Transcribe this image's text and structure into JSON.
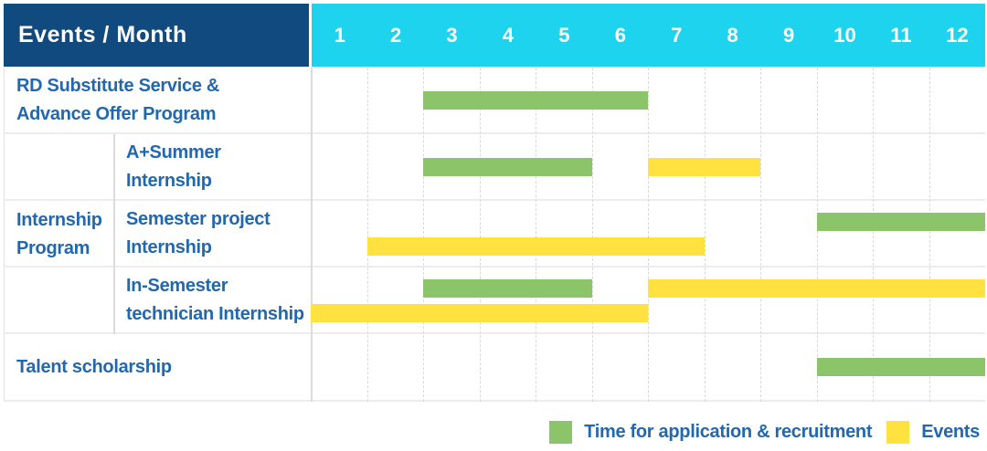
{
  "ui": {
    "header": {
      "title": "Events / Month",
      "months": [
        "1",
        "2",
        "3",
        "4",
        "5",
        "6",
        "7",
        "8",
        "9",
        "10",
        "11",
        "12"
      ]
    },
    "rows": {
      "rd": {
        "line1": "RD Substitute Service &",
        "line2": "Advance Offer Program",
        "bars": [
          {
            "color": "green",
            "start": 3,
            "end": 6,
            "track": "center"
          }
        ]
      },
      "group": {
        "line1": "Internship",
        "line2": "Program"
      },
      "summer": {
        "line1": "A+Summer",
        "line2": "Internship",
        "bars": [
          {
            "color": "green",
            "start": 3,
            "end": 5,
            "track": "center"
          },
          {
            "color": "yellow",
            "start": 7,
            "end": 8,
            "track": "center"
          }
        ]
      },
      "semester": {
        "line1": "Semester project",
        "line2": "Internship",
        "bars": [
          {
            "color": "green",
            "start": 10,
            "end": 12,
            "track": "upper"
          },
          {
            "color": "yellow",
            "start": 2,
            "end": 7,
            "track": "lower"
          }
        ]
      },
      "insemester": {
        "line1": "In-Semester",
        "line2": "technician Internship",
        "bars": [
          {
            "color": "green",
            "start": 3,
            "end": 5,
            "track": "upper"
          },
          {
            "color": "yellow",
            "start": 7,
            "end": 12,
            "track": "upper"
          },
          {
            "color": "yellow",
            "start": 1,
            "end": 6,
            "track": "lower"
          }
        ]
      },
      "talent": {
        "line1": "Talent scholarship",
        "bars": [
          {
            "color": "green",
            "start": 10,
            "end": 12,
            "track": "center"
          }
        ]
      }
    },
    "legend": {
      "recruitment": "Time for application & recruitment",
      "events": "Events"
    },
    "colors": {
      "navy": "#114a7e",
      "cyan": "#1dd3ee",
      "green": "#8cc569",
      "yellow": "#ffe23f",
      "label_blue": "#2268ae"
    }
  },
  "chart_data": {
    "type": "bar",
    "subtype": "gantt-schedule",
    "title": "Events / Month",
    "xlabel": "Month",
    "x_ticks": [
      1,
      2,
      3,
      4,
      5,
      6,
      7,
      8,
      9,
      10,
      11,
      12
    ],
    "xlim": [
      1,
      12
    ],
    "grid": true,
    "legend_position": "bottom-right",
    "legend": [
      {
        "label": "Time for application & recruitment",
        "color": "#8cc569"
      },
      {
        "label": "Events",
        "color": "#ffe23f"
      }
    ],
    "rows": [
      {
        "event": "RD Substitute Service & Advance Offer Program",
        "group": null,
        "bars": [
          {
            "kind": "Time for application & recruitment",
            "start_month": 3,
            "end_month": 6
          }
        ]
      },
      {
        "event": "A+Summer Internship",
        "group": "Internship Program",
        "bars": [
          {
            "kind": "Time for application & recruitment",
            "start_month": 3,
            "end_month": 5
          },
          {
            "kind": "Events",
            "start_month": 7,
            "end_month": 8
          }
        ]
      },
      {
        "event": "Semester project Internship",
        "group": "Internship Program",
        "bars": [
          {
            "kind": "Time for application & recruitment",
            "start_month": 10,
            "end_month": 12
          },
          {
            "kind": "Events",
            "start_month": 2,
            "end_month": 7
          }
        ]
      },
      {
        "event": "In-Semester technician Internship",
        "group": "Internship Program",
        "bars": [
          {
            "kind": "Time for application & recruitment",
            "start_month": 3,
            "end_month": 5
          },
          {
            "kind": "Events",
            "start_month": 7,
            "end_month": 12
          },
          {
            "kind": "Events",
            "start_month": 1,
            "end_month": 6
          }
        ]
      },
      {
        "event": "Talent scholarship",
        "group": null,
        "bars": [
          {
            "kind": "Time for application & recruitment",
            "start_month": 10,
            "end_month": 12
          }
        ]
      }
    ]
  }
}
